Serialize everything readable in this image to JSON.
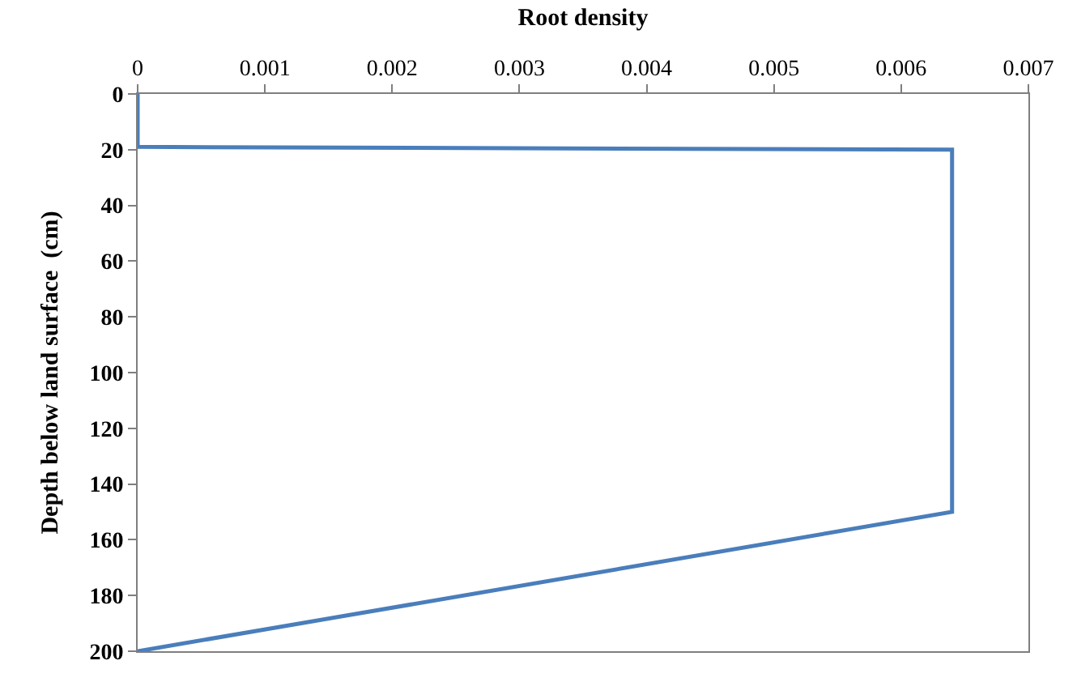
{
  "chart_data": {
    "type": "line",
    "orientation": "horizontal",
    "xlabel": "Root density",
    "ylabel": "Depth below land surface  (cm)",
    "x": [
      0,
      19,
      20,
      150,
      200
    ],
    "series": [
      {
        "color": "#4a7ebb",
        "values": [
          0,
          0,
          0.0064,
          0.0064,
          0
        ]
      }
    ],
    "xlim": [
      0,
      0.007
    ],
    "xticks": [
      0,
      0.001,
      0.002,
      0.003,
      0.004,
      0.005,
      0.006,
      0.007
    ],
    "ylim": [
      200,
      0
    ],
    "yticks": [
      0,
      20,
      40,
      60,
      80,
      100,
      120,
      140,
      160,
      180,
      200
    ],
    "grid": false,
    "legend": false,
    "marker": "none",
    "line_style": "solid"
  }
}
